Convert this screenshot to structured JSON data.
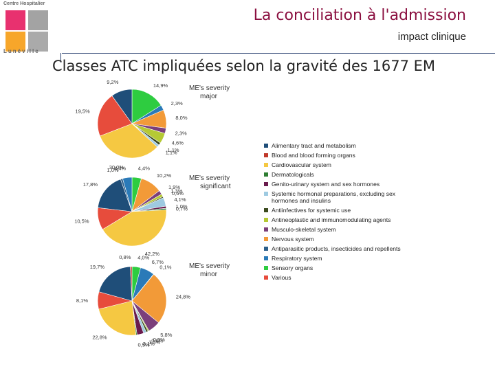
{
  "logo": {
    "top_text": [
      "Centre Hospitalier"
    ],
    "bottom_text": "Lunéville"
  },
  "header": {
    "title": "La conciliation à l'admission",
    "subtitle": "impact clinique",
    "heading": "Classes ATC impliquées selon la gravité des 1677 EM"
  },
  "colors": {
    "logo": [
      "#e8316f",
      "#a3a3a3",
      "#e8a0d0",
      "#f7a62a",
      "#aaaaaa"
    ],
    "rule": "#223a6b"
  },
  "legend": [
    {
      "label": "Alimentary tract and metabolism",
      "color": "#1f4e79"
    },
    {
      "label": "Blood and blood forming organs",
      "color": "#c0392b"
    },
    {
      "label": "Cardiovascular system",
      "color": "#f5c842"
    },
    {
      "label": "Dermatologicals",
      "color": "#2e7d32"
    },
    {
      "label": "Genito-urinary system and sex hormones",
      "color": "#6a1b4d"
    },
    {
      "label": "Systemic hormonal preparations, excluding sex hormones and insulins",
      "color": "#9ecae1"
    },
    {
      "label": "Antiinfectives for systemic use",
      "color": "#3b4a1e"
    },
    {
      "label": "Antineoplastic and immunomodulating agents",
      "color": "#b5c934"
    },
    {
      "label": "Musculo-skeletal system",
      "color": "#7b3f7b"
    },
    {
      "label": "Nervous system",
      "color": "#f29a38"
    },
    {
      "label": "Antiparasitic products, insecticides and repellents",
      "color": "#2c5f8a"
    },
    {
      "label": "Respiratory system",
      "color": "#2a7ab8"
    },
    {
      "label": "Sensory organs",
      "color": "#2ecc40"
    },
    {
      "label": "Various",
      "color": "#e74c3c"
    }
  ],
  "chart_data": [
    {
      "type": "pie",
      "title": "ME's severity major",
      "slices": [
        {
          "label": "14,9%",
          "value": 14.9,
          "color": "#2ecc40"
        },
        {
          "label": "2,3%",
          "value": 2.3,
          "color": "#2a7ab8"
        },
        {
          "label": "8,0%",
          "value": 8.0,
          "color": "#f29a38"
        },
        {
          "label": "2,3%",
          "value": 2.3,
          "color": "#7b3f7b"
        },
        {
          "label": "4,6%",
          "value": 4.6,
          "color": "#b5c934"
        },
        {
          "label": "1,1%",
          "value": 1.1,
          "color": "#3b4a1e"
        },
        {
          "label": "1,1%",
          "value": 1.1,
          "color": "#9ecae1"
        },
        {
          "label": "30,0%",
          "value": 30.0,
          "color": "#f5c842"
        },
        {
          "label": "19,5%",
          "value": 19.5,
          "color": "#e74c3c"
        },
        {
          "label": "9,2%",
          "value": 9.2,
          "color": "#1f4e79"
        }
      ]
    },
    {
      "type": "pie",
      "title": "ME's severity significant",
      "slices": [
        {
          "label": "4,4%",
          "value": 4.4,
          "color": "#2ecc40"
        },
        {
          "label": "10,2%",
          "value": 10.2,
          "color": "#f29a38"
        },
        {
          "label": "1,9%",
          "value": 1.9,
          "color": "#7b3f7b"
        },
        {
          "label": "1,3%",
          "value": 1.3,
          "color": "#b5c934"
        },
        {
          "label": "0,6%",
          "value": 0.6,
          "color": "#3b4a1e"
        },
        {
          "label": "4,1%",
          "value": 4.1,
          "color": "#9ecae1"
        },
        {
          "label": "1,0%",
          "value": 1.0,
          "color": "#6a1b4d"
        },
        {
          "label": "0,7%",
          "value": 0.7,
          "color": "#2e7d32"
        },
        {
          "label": "42,2%",
          "value": 42.2,
          "color": "#f5c842"
        },
        {
          "label": "10,5%",
          "value": 10.5,
          "color": "#e74c3c"
        },
        {
          "label": "17,8%",
          "value": 17.8,
          "color": "#1f4e79"
        },
        {
          "label": "1,0%",
          "value": 1.0,
          "color": "#2c5f8a"
        },
        {
          "label": "4,4%",
          "value": 4.4,
          "color": "#2a7ab8"
        }
      ]
    },
    {
      "type": "pie",
      "title": "ME's severity minor",
      "slices": [
        {
          "label": "4,0%",
          "value": 4.0,
          "color": "#2ecc40"
        },
        {
          "label": "6,7%",
          "value": 6.7,
          "color": "#2a7ab8"
        },
        {
          "label": "0,1%",
          "value": 0.1,
          "color": "#2c5f8a"
        },
        {
          "label": "24,8%",
          "value": 24.8,
          "color": "#f29a38"
        },
        {
          "label": "5,8%",
          "value": 5.8,
          "color": "#7b3f7b"
        },
        {
          "label": "0,5%",
          "value": 0.5,
          "color": "#b5c934"
        },
        {
          "label": "0,9%",
          "value": 0.9,
          "color": "#3b4a1e"
        },
        {
          "label": "1,3%",
          "value": 1.3,
          "color": "#9ecae1"
        },
        {
          "label": "3,1%",
          "value": 3.1,
          "color": "#6a1b4d"
        },
        {
          "label": "0,5%",
          "value": 0.5,
          "color": "#2e7d32"
        },
        {
          "label": "22,8%",
          "value": 22.8,
          "color": "#f5c842"
        },
        {
          "label": "8,1%",
          "value": 8.1,
          "color": "#e74c3c"
        },
        {
          "label": "19,7%",
          "value": 19.7,
          "color": "#1f4e79"
        },
        {
          "label": "0,8%",
          "value": 0.8,
          "color": "#c0392b"
        }
      ]
    }
  ]
}
